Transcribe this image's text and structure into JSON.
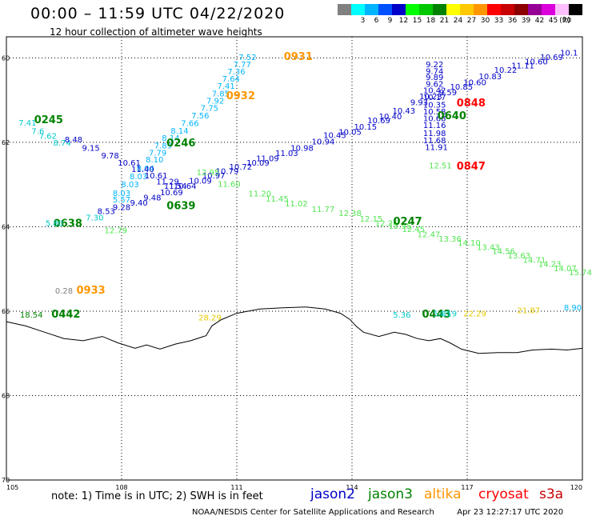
{
  "title": "00:00 – 11:59 UTC 04/22/2020",
  "subtitle": "12 hour collection of altimeter wave heights",
  "scale": {
    "unit_label": "(ft)",
    "bins": [
      {
        "label": "",
        "color": "#808080"
      },
      {
        "label": "3",
        "color": "#00ffff"
      },
      {
        "label": "6",
        "color": "#00b4ff"
      },
      {
        "label": "9",
        "color": "#0050ff"
      },
      {
        "label": "12",
        "color": "#0000c8"
      },
      {
        "label": "15",
        "color": "#00ff00"
      },
      {
        "label": "18",
        "color": "#00c800"
      },
      {
        "label": "21",
        "color": "#008200"
      },
      {
        "label": "24",
        "color": "#ffff00"
      },
      {
        "label": "27",
        "color": "#ffc800"
      },
      {
        "label": "30",
        "color": "#ff9600"
      },
      {
        "label": "33",
        "color": "#ff0000"
      },
      {
        "label": "36",
        "color": "#c80000"
      },
      {
        "label": "39",
        "color": "#8c0000"
      },
      {
        "label": "42",
        "color": "#960096"
      },
      {
        "label": "45",
        "color": "#dc00dc"
      },
      {
        "label": "70",
        "color": "#ffbeff"
      },
      {
        "label": "",
        "color": "#000000"
      }
    ]
  },
  "axes": {
    "lat_ticks": [
      "60",
      "62",
      "64",
      "66",
      "68",
      "70"
    ],
    "lon_ticks": [
      "105",
      "108",
      "111",
      "114",
      "117",
      "120"
    ],
    "lon_range": [
      105,
      120
    ],
    "lat_range": [
      -70,
      -59.5
    ],
    "grid": "dotted"
  },
  "colors": {
    "jason2": "#0000c8",
    "jason3": "#008200",
    "altika": "#ff9600",
    "cryosat": "#ff0000",
    "s3a": "#c80000",
    "c_low": "#00b4ff",
    "c_cyan": "#00c8c8",
    "c_lgreen": "#50e650",
    "c_gray": "#808080",
    "c_yellow": "#e6c800"
  },
  "tracks": [
    {
      "name": "s3a-0931",
      "color": "#00b4ff",
      "time": "0931",
      "time_color": "#ff9600",
      "time_pos": [
        112.6,
        -60.05
      ],
      "points": [
        [
          111.28,
          -60.05,
          "7.52"
        ],
        [
          111.14,
          -60.22,
          "7.77"
        ],
        [
          110.99,
          -60.39,
          "7.36"
        ],
        [
          110.85,
          -60.56,
          "7.64"
        ],
        [
          110.72,
          -60.73,
          "7.41"
        ],
        [
          110.58,
          -60.91,
          "7.85"
        ],
        [
          110.44,
          -61.08,
          "7.92"
        ],
        [
          110.29,
          -61.25,
          "7.75"
        ],
        [
          110.05,
          -61.43,
          "7.56"
        ],
        [
          109.78,
          -61.61,
          "7.66"
        ],
        [
          109.51,
          -61.79,
          "8.14"
        ],
        [
          109.28,
          -61.96,
          "8.14"
        ],
        [
          109.08,
          -62.14,
          "7.89"
        ],
        [
          108.94,
          -62.31,
          "7.79"
        ],
        [
          108.86,
          -62.48,
          "8.10"
        ],
        [
          108.62,
          -62.68,
          "8.04"
        ],
        [
          108.44,
          -62.87,
          "8.03"
        ],
        [
          108.22,
          -63.06,
          "8.03"
        ],
        [
          108.0,
          -63.27,
          "8.03"
        ],
        [
          108.0,
          -63.42,
          "5.57"
        ]
      ]
    },
    {
      "name": "time-0932",
      "color": "#ff9600",
      "time": "0932",
      "time_color": "#ff9600",
      "time_pos": [
        111.1,
        -60.98
      ],
      "points": []
    },
    {
      "name": "jason3-0245",
      "color": "#00c8c8",
      "time": "0245",
      "time_color": "#008200",
      "time_pos": [
        106.1,
        -61.55
      ],
      "points": [
        [
          105.55,
          -61.6,
          "7.41"
        ],
        [
          105.82,
          -61.8,
          "7.6"
        ],
        [
          106.08,
          -61.92,
          "7.62"
        ],
        [
          106.45,
          -62.08,
          "8.74"
        ]
      ]
    },
    {
      "name": "jason2-0246",
      "color": "#0000c8",
      "time": "0246",
      "time_color": "#008200",
      "time_pos": [
        109.55,
        -62.1
      ],
      "points": [
        [
          106.75,
          -62.0,
          "8.48"
        ],
        [
          107.2,
          -62.2,
          "9.15"
        ],
        [
          107.7,
          -62.38,
          "9.78"
        ],
        [
          108.2,
          -62.55,
          "10.61"
        ],
        [
          108.55,
          -62.7,
          "11.40"
        ],
        [
          108.9,
          -62.85,
          "10.61"
        ],
        [
          109.2,
          -63.0,
          "11.29"
        ],
        [
          109.4,
          -63.1,
          "11.54"
        ]
      ]
    },
    {
      "name": "jason2-ascending",
      "color": "#0000c8",
      "time": "",
      "time_color": "#0000c8",
      "time_pos": [
        0,
        0
      ],
      "points": [
        [
          107.6,
          -63.7,
          "8.53"
        ],
        [
          108.0,
          -63.6,
          "9.28"
        ],
        [
          108.45,
          -63.5,
          "9.40"
        ],
        [
          108.8,
          -63.38,
          "9.48"
        ],
        [
          109.3,
          -63.25,
          "10.69"
        ],
        [
          109.65,
          -63.1,
          "10.64"
        ],
        [
          110.05,
          -62.98,
          "10.09"
        ],
        [
          110.4,
          -62.85,
          "10.97"
        ],
        [
          110.75,
          -62.75,
          "10.79"
        ],
        [
          111.1,
          -62.65,
          "10.72"
        ],
        [
          111.55,
          -62.55,
          "10.09"
        ],
        [
          111.8,
          -62.45,
          "11.09"
        ],
        [
          112.3,
          -62.32,
          "11.03"
        ],
        [
          112.7,
          -62.2,
          "10.98"
        ],
        [
          113.25,
          -62.05,
          "10.94"
        ],
        [
          113.55,
          -61.9,
          "10.45"
        ],
        [
          113.95,
          -61.82,
          "10.05"
        ],
        [
          114.35,
          -61.7,
          "10.15"
        ],
        [
          114.7,
          -61.55,
          "10.69"
        ],
        [
          115.0,
          -61.45,
          "10.40"
        ],
        [
          115.35,
          -61.32,
          "10.43"
        ],
        [
          115.75,
          -61.12,
          "9.93"
        ],
        [
          116.05,
          -60.98,
          "10.23"
        ],
        [
          116.5,
          -60.88,
          "9.59"
        ],
        [
          116.85,
          -60.75,
          "10.85"
        ],
        [
          117.2,
          -60.65,
          "10.60"
        ],
        [
          117.6,
          -60.5,
          "10.83"
        ],
        [
          118.0,
          -60.35,
          "10.22"
        ],
        [
          118.45,
          -60.25,
          "11.11"
        ],
        [
          118.8,
          -60.15,
          "10.60"
        ],
        [
          119.2,
          -60.05,
          "10.69"
        ],
        [
          119.65,
          -59.95,
          "10.1"
        ]
      ]
    },
    {
      "name": "time-0639",
      "color": "#008200",
      "time": "0639",
      "time_color": "#008200",
      "time_pos": [
        109.55,
        -63.58
      ],
      "points": []
    },
    {
      "name": "time-0638",
      "color": "#008200",
      "time": "0638",
      "time_color": "#008200",
      "time_pos": [
        106.6,
        -64.0
      ],
      "points": []
    },
    {
      "name": "cyan-0638",
      "color": "#00c8c8",
      "time": "",
      "time_color": "#00c8c8",
      "time_pos": [
        0,
        0
      ],
      "points": [
        [
          106.25,
          -63.98,
          "5.80"
        ],
        [
          107.3,
          -63.85,
          "7.30"
        ]
      ]
    },
    {
      "name": "lgreen-1279",
      "color": "#50e650",
      "time": "",
      "time_color": "#50e650",
      "time_pos": [
        0,
        0
      ],
      "points": [
        [
          107.85,
          -64.15,
          "12.79"
        ]
      ]
    },
    {
      "name": "lgreen-descending",
      "color": "#50e650",
      "time": "",
      "time_color": "#50e650",
      "time_pos": [
        0,
        0
      ],
      "points": [
        [
          110.25,
          -62.78,
          "12.95"
        ],
        [
          110.8,
          -63.05,
          "11.60"
        ],
        [
          111.6,
          -63.28,
          "11.20"
        ],
        [
          112.05,
          -63.4,
          "11.45"
        ],
        [
          112.55,
          -63.52,
          "11.02"
        ],
        [
          113.25,
          -63.65,
          "11.77"
        ],
        [
          113.95,
          -63.75,
          "12.38"
        ],
        [
          114.5,
          -63.88,
          "12.15"
        ],
        [
          114.9,
          -63.98,
          "12.26"
        ],
        [
          115.25,
          -64.05,
          "12.95"
        ],
        [
          115.6,
          -64.12,
          "12.45"
        ],
        [
          116.0,
          -64.25,
          "12.47"
        ],
        [
          116.55,
          -64.35,
          "13.36"
        ],
        [
          117.05,
          -64.45,
          "14.10"
        ],
        [
          117.55,
          -64.55,
          "13.43"
        ],
        [
          117.95,
          -64.65,
          "14.56"
        ],
        [
          118.35,
          -64.75,
          "13.63"
        ],
        [
          118.75,
          -64.85,
          "14.71"
        ],
        [
          119.15,
          -64.95,
          "14.23"
        ],
        [
          119.55,
          -65.05,
          "14.07"
        ],
        [
          119.95,
          -65.15,
          "15.74"
        ],
        [
          120.1,
          -65.3,
          ""
        ]
      ]
    },
    {
      "name": "time-0247",
      "color": "#008200",
      "time": "0247",
      "time_color": "#008200",
      "time_pos": [
        115.45,
        -63.95
      ],
      "points": []
    },
    {
      "name": "jason2-0848",
      "color": "#0000c8",
      "time": "0848",
      "time_color": "#ff0000",
      "time_pos": [
        117.1,
        -61.15
      ],
      "points": [
        [
          116.15,
          -60.22,
          "9.22"
        ],
        [
          116.15,
          -60.38,
          "9.74"
        ],
        [
          116.15,
          -60.52,
          "9.89"
        ],
        [
          116.15,
          -60.68,
          "9.62"
        ],
        [
          116.15,
          -60.84,
          "10.42"
        ],
        [
          116.15,
          -61.0,
          "10.17"
        ],
        [
          116.15,
          -61.18,
          "10.35"
        ],
        [
          116.15,
          -61.34,
          "10.58"
        ],
        [
          116.15,
          -61.5,
          "10.68"
        ],
        [
          116.15,
          -61.66,
          "11.16"
        ],
        [
          116.15,
          -61.85,
          "11.98"
        ],
        [
          116.15,
          -62.02,
          "11.68"
        ],
        [
          116.2,
          -62.18,
          "11.91"
        ]
      ]
    },
    {
      "name": "time-0640",
      "color": "#008200",
      "time": "0640",
      "time_color": "#008200",
      "time_pos": [
        116.6,
        -61.45
      ],
      "points": []
    },
    {
      "name": "time-0847",
      "color": "#ff0000",
      "time": "0847",
      "time_color": "#ff0000",
      "time_pos": [
        117.1,
        -62.65
      ],
      "points": []
    },
    {
      "name": "lgreen-1251",
      "color": "#50e650",
      "time": "",
      "time_color": "#50e650",
      "time_pos": [
        0,
        0
      ],
      "points": [
        [
          116.3,
          -62.62,
          "12.51"
        ]
      ]
    },
    {
      "name": "time-0933",
      "color": "#ff9600",
      "time": "0933",
      "time_color": "#ff9600",
      "time_pos": [
        107.2,
        -65.58
      ],
      "points": []
    },
    {
      "name": "gray-028",
      "color": "#808080",
      "time": "",
      "time_color": "#808080",
      "time_pos": [
        0,
        0
      ],
      "points": [
        [
          106.5,
          -65.58,
          "0.28"
        ]
      ]
    },
    {
      "name": "time-0442",
      "color": "#008200",
      "time": "0442",
      "time_color": "#008200",
      "time_pos": [
        106.55,
        -66.15
      ],
      "points": []
    },
    {
      "name": "green-1854",
      "color": "#008200",
      "time": "",
      "time_color": "#008200",
      "time_pos": [
        0,
        0
      ],
      "points": [
        [
          105.65,
          -66.15,
          "18.54"
        ]
      ]
    },
    {
      "name": "yellow-2829",
      "color": "#e6c800",
      "time": "",
      "time_color": "#e6c800",
      "time_pos": [
        0,
        0
      ],
      "points": [
        [
          110.3,
          -66.22,
          "28.29"
        ]
      ]
    },
    {
      "name": "time-0443",
      "color": "#008200",
      "time": "0443",
      "time_color": "#008200",
      "time_pos": [
        116.2,
        -66.15
      ],
      "points": []
    },
    {
      "name": "misc-066",
      "color": "#00c8c8",
      "time": "",
      "time_color": "#00c8c8",
      "time_pos": [
        0,
        0
      ],
      "points": [
        [
          115.3,
          -66.15,
          "5.36"
        ],
        [
          116.35,
          -66.12,
          "5.35"
        ],
        [
          116.5,
          -66.12,
          "4.19"
        ]
      ]
    },
    {
      "name": "yellow-066",
      "color": "#e6c800",
      "time": "",
      "time_color": "#e6c800",
      "time_pos": [
        0,
        0
      ],
      "points": [
        [
          117.2,
          -66.12,
          "22.29"
        ],
        [
          118.6,
          -66.05,
          "21.87"
        ]
      ]
    },
    {
      "name": "blue-890",
      "color": "#00b4ff",
      "time": "",
      "time_color": "#00b4ff",
      "time_pos": [
        0,
        0
      ],
      "points": [
        [
          119.75,
          -65.98,
          "8.90"
        ]
      ]
    }
  ],
  "coastline": [
    [
      105.0,
      -66.25
    ],
    [
      105.5,
      -66.35
    ],
    [
      106.0,
      -66.5
    ],
    [
      106.5,
      -66.65
    ],
    [
      107.0,
      -66.7
    ],
    [
      107.5,
      -66.6
    ],
    [
      107.9,
      -66.75
    ],
    [
      108.35,
      -66.88
    ],
    [
      108.65,
      -66.8
    ],
    [
      109.0,
      -66.9
    ],
    [
      109.4,
      -66.78
    ],
    [
      109.8,
      -66.7
    ],
    [
      110.2,
      -66.58
    ],
    [
      110.35,
      -66.35
    ],
    [
      110.6,
      -66.2
    ],
    [
      111.0,
      -66.05
    ],
    [
      111.6,
      -65.95
    ],
    [
      112.2,
      -65.92
    ],
    [
      112.8,
      -65.9
    ],
    [
      113.3,
      -65.95
    ],
    [
      113.7,
      -66.05
    ],
    [
      113.95,
      -66.2
    ],
    [
      114.1,
      -66.35
    ],
    [
      114.3,
      -66.5
    ],
    [
      114.7,
      -66.6
    ],
    [
      115.1,
      -66.5
    ],
    [
      115.4,
      -66.55
    ],
    [
      115.7,
      -66.65
    ],
    [
      116.0,
      -66.7
    ],
    [
      116.3,
      -66.65
    ],
    [
      116.55,
      -66.75
    ],
    [
      116.85,
      -66.9
    ],
    [
      117.3,
      -67.0
    ],
    [
      117.8,
      -66.98
    ],
    [
      118.3,
      -66.98
    ],
    [
      118.7,
      -66.92
    ],
    [
      119.2,
      -66.9
    ],
    [
      119.6,
      -66.92
    ],
    [
      120.0,
      -66.88
    ]
  ],
  "note": "note: 1) Time is in UTC; 2) SWH is in feet",
  "satellites": [
    {
      "name": "jason2",
      "color": "#0000c8"
    },
    {
      "name": "jason3",
      "color": "#008200"
    },
    {
      "name": "altika",
      "color": "#ff9600"
    },
    {
      "name": "cryosat",
      "color": "#ff0000"
    },
    {
      "name": "s3a",
      "color": "#c80000"
    }
  ],
  "footer_left": "NOAA/NESDIS Center for Satellite Applications and Research",
  "footer_right": "Apr 23 12:27:17 UTC 2020"
}
